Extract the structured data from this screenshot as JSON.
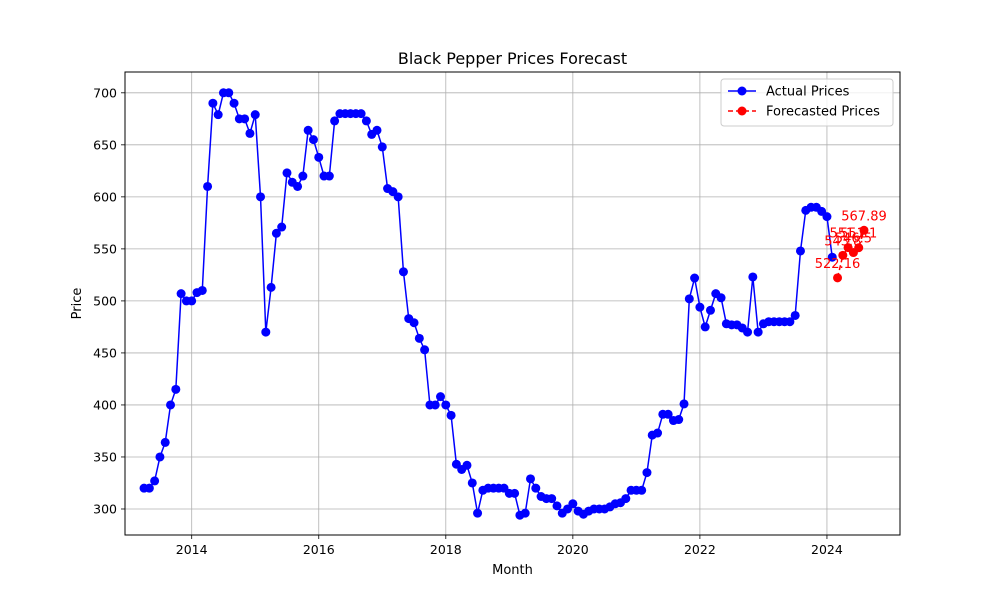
{
  "chart_data": {
    "type": "line",
    "title": "Black Pepper Prices Forecast",
    "xlabel": "Month",
    "ylabel": "Price",
    "xlim": [
      2012.95,
      2025.15
    ],
    "ylim": [
      275,
      720
    ],
    "x_ticks": [
      2014,
      2016,
      2018,
      2020,
      2022,
      2024
    ],
    "y_ticks": [
      300,
      350,
      400,
      450,
      500,
      550,
      600,
      650,
      700
    ],
    "grid": true,
    "legend_position": "top-right",
    "colors": {
      "actual": "#0000ff",
      "forecast": "#ff0000"
    },
    "series": [
      {
        "name": "Actual Prices",
        "style": "solid",
        "marker": "circle",
        "x": [
          "2013-04",
          "2013-05",
          "2013-06",
          "2013-07",
          "2013-08",
          "2013-09",
          "2013-10",
          "2013-11",
          "2013-12",
          "2014-01",
          "2014-02",
          "2014-03",
          "2014-04",
          "2014-05",
          "2014-06",
          "2014-07",
          "2014-08",
          "2014-09",
          "2014-10",
          "2014-11",
          "2014-12",
          "2015-01",
          "2015-02",
          "2015-03",
          "2015-04",
          "2015-05",
          "2015-06",
          "2015-07",
          "2015-08",
          "2015-09",
          "2015-10",
          "2015-11",
          "2015-12",
          "2016-01",
          "2016-02",
          "2016-03",
          "2016-04",
          "2016-05",
          "2016-06",
          "2016-07",
          "2016-08",
          "2016-09",
          "2016-10",
          "2016-11",
          "2016-12",
          "2017-01",
          "2017-02",
          "2017-03",
          "2017-04",
          "2017-05",
          "2017-06",
          "2017-07",
          "2017-08",
          "2017-09",
          "2017-10",
          "2017-11",
          "2017-12",
          "2018-01",
          "2018-02",
          "2018-03",
          "2018-04",
          "2018-05",
          "2018-06",
          "2018-07",
          "2018-08",
          "2018-09",
          "2018-10",
          "2018-11",
          "2018-12",
          "2019-01",
          "2019-02",
          "2019-03",
          "2019-04",
          "2019-05",
          "2019-06",
          "2019-07",
          "2019-08",
          "2019-09",
          "2019-10",
          "2019-11",
          "2019-12",
          "2020-01",
          "2020-02",
          "2020-03",
          "2020-04",
          "2020-05",
          "2020-06",
          "2020-07",
          "2020-08",
          "2020-09",
          "2020-10",
          "2020-11",
          "2020-12",
          "2021-01",
          "2021-02",
          "2021-03",
          "2021-04",
          "2021-05",
          "2021-06",
          "2021-07",
          "2021-08",
          "2021-09",
          "2021-10",
          "2021-11",
          "2021-12",
          "2022-01",
          "2022-02",
          "2022-03",
          "2022-04",
          "2022-05",
          "2022-06",
          "2022-07",
          "2022-08",
          "2022-09",
          "2022-10",
          "2022-11",
          "2022-12",
          "2023-01",
          "2023-02",
          "2023-03",
          "2023-04",
          "2023-05",
          "2023-06",
          "2023-07",
          "2023-08",
          "2023-09",
          "2023-10",
          "2023-11",
          "2023-12",
          "2024-01",
          "2024-02"
        ],
        "values": [
          320,
          320,
          327,
          350,
          364,
          400,
          415,
          507,
          500,
          500,
          508,
          510,
          610,
          690,
          679,
          700,
          700,
          690,
          675,
          675,
          661,
          679,
          600,
          470,
          513,
          565,
          571,
          623,
          614,
          610,
          620,
          664,
          655,
          638,
          620,
          620,
          673,
          680,
          680,
          680,
          680,
          680,
          673,
          660,
          664,
          648,
          608,
          605,
          600,
          528,
          483,
          479,
          464,
          453,
          400,
          400,
          408,
          400,
          390,
          343,
          338,
          342,
          325,
          296,
          318,
          320,
          320,
          320,
          320,
          315,
          315,
          294,
          296,
          329,
          320,
          312,
          310,
          310,
          303,
          296,
          300,
          305,
          298,
          295,
          298,
          300,
          300,
          300,
          302,
          305,
          306,
          310,
          318,
          318,
          318,
          335,
          371,
          373,
          391,
          391,
          385,
          386,
          401,
          502,
          522,
          494,
          475,
          491,
          507,
          503,
          478,
          477,
          477,
          474,
          470,
          523,
          470,
          478,
          480,
          480,
          480,
          480,
          480,
          486,
          548,
          587,
          590,
          590,
          586,
          581,
          542
        ]
      },
      {
        "name": "Forecasted Prices",
        "style": "dashed",
        "marker": "circle",
        "x": [
          "2024-03",
          "2024-04",
          "2024-05",
          "2024-06",
          "2024-07",
          "2024-08"
        ],
        "values": [
          522.16,
          543.8,
          551.2,
          546.5,
          551.1,
          567.89
        ]
      }
    ],
    "annotations": [
      {
        "x": "2024-03",
        "value": 522.16,
        "text": "522.16"
      },
      {
        "x": "2024-04",
        "value": 543.8,
        "text": "543.8"
      },
      {
        "x": "2024-05",
        "value": 551.2,
        "text": "551.2"
      },
      {
        "x": "2024-06",
        "value": 546.5,
        "text": "546.5"
      },
      {
        "x": "2024-07",
        "value": 551.1,
        "text": "551.1"
      },
      {
        "x": "2024-08",
        "value": 567.89,
        "text": "567.89"
      }
    ]
  }
}
